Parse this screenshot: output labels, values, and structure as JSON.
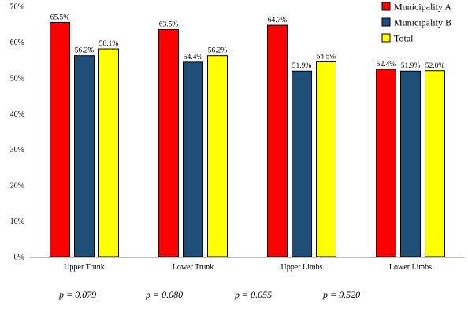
{
  "chart_data": {
    "type": "bar",
    "title": "",
    "xlabel": "",
    "ylabel": "",
    "ylim": [
      0,
      70
    ],
    "yticks": [
      0,
      10,
      20,
      30,
      40,
      50,
      60,
      70
    ],
    "ytick_labels": [
      "0%",
      "10%",
      "20%",
      "30%",
      "40%",
      "50%",
      "60%",
      "70%"
    ],
    "grid": false,
    "legend_position": "top-right",
    "categories": [
      "Upper Trunk",
      "Lower Trunk",
      "Upper Limbs",
      "Lower Limbs"
    ],
    "series": [
      {
        "name": "Municipality  A",
        "color": "#ff0000",
        "values": [
          65.5,
          63.5,
          64.7,
          52.4
        ],
        "labels": [
          "65.5%",
          "63.5%",
          "64.7%",
          "52.4%"
        ]
      },
      {
        "name": "Municipality B",
        "color": "#1f4e79",
        "values": [
          56.2,
          54.4,
          51.9,
          51.9
        ],
        "labels": [
          "56.2%",
          "54.4%",
          "51.9%",
          "51.9%"
        ]
      },
      {
        "name": "Total",
        "color": "#ffff00",
        "values": [
          58.1,
          56.2,
          54.5,
          52.0
        ],
        "labels": [
          "58.1%",
          "56.2%",
          "54.5%",
          "52.0%"
        ]
      }
    ],
    "annotations": [
      "p = 0.079",
      "p = 0.080",
      "p = 0.055",
      "p = 0.520"
    ]
  }
}
